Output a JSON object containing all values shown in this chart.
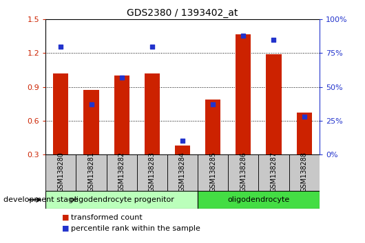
{
  "title": "GDS2380 / 1393402_at",
  "categories": [
    "GSM138280",
    "GSM138281",
    "GSM138282",
    "GSM138283",
    "GSM138284",
    "GSM138285",
    "GSM138286",
    "GSM138287",
    "GSM138288"
  ],
  "red_values": [
    1.02,
    0.87,
    1.0,
    1.02,
    0.38,
    0.79,
    1.37,
    1.19,
    0.67
  ],
  "blue_values": [
    80,
    37,
    57,
    80,
    10,
    37,
    88,
    85,
    28
  ],
  "ylim_left": [
    0.3,
    1.5
  ],
  "ylim_right": [
    0,
    100
  ],
  "yticks_left": [
    0.3,
    0.6,
    0.9,
    1.2,
    1.5
  ],
  "yticks_right": [
    0,
    25,
    50,
    75,
    100
  ],
  "ytick_labels_right": [
    "0%",
    "25%",
    "50%",
    "75%",
    "100%"
  ],
  "red_color": "#cc2200",
  "blue_color": "#2233cc",
  "bar_width": 0.5,
  "group1_label": "oligodendrocyte progenitor",
  "group2_label": "oligodendrocyte",
  "group1_color": "#bbffbb",
  "group2_color": "#44dd44",
  "legend_red": "transformed count",
  "legend_blue": "percentile rank within the sample",
  "dev_stage_label": "development stage",
  "xtick_bg": "#c8c8c8"
}
